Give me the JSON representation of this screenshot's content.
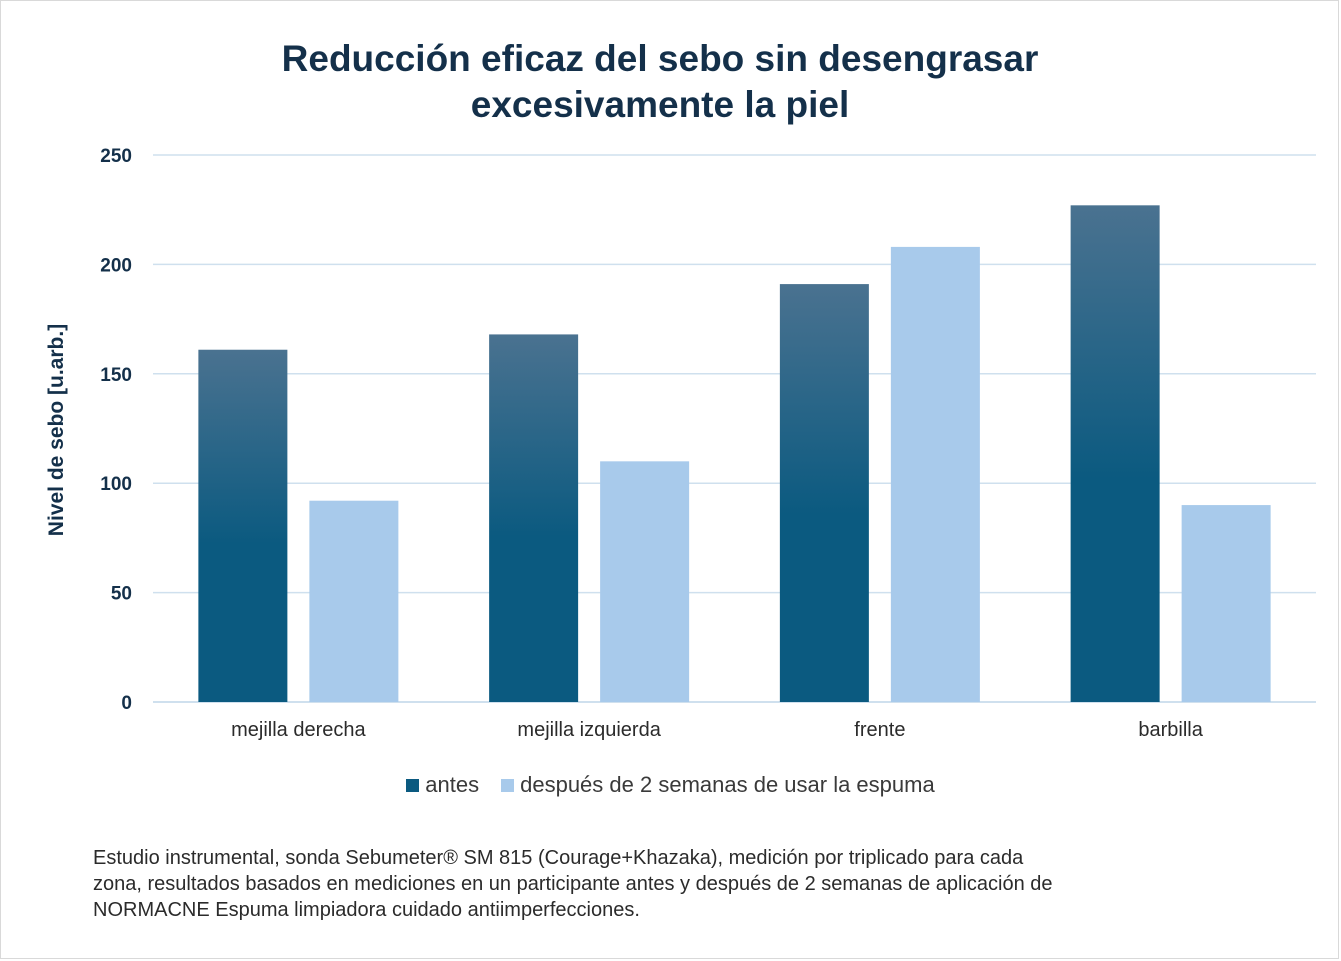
{
  "title_lines": [
    "Reducción eficaz del sebo sin desengrasar",
    "excesivamente la piel"
  ],
  "colors": {
    "antes_top": "#4a7290",
    "antes_bottom": "#0b5a80",
    "despues": "#a8caeb",
    "grid": "#cfe0ee",
    "text_dark": "#14304a"
  },
  "chart_data": {
    "type": "bar",
    "title": "Reducción eficaz del sebo sin desengrasar excesivamente la piel",
    "xlabel": "",
    "ylabel": "Nivel de sebo [u.arb.]",
    "ylim": [
      0,
      250
    ],
    "yticks": [
      "0",
      "50",
      "100",
      "150",
      "200",
      "250"
    ],
    "categories": [
      "mejilla derecha",
      "mejilla izquierda",
      "frente",
      "barbilla"
    ],
    "series": [
      {
        "name": "antes",
        "values": [
          161,
          168,
          191,
          227
        ]
      },
      {
        "name": "después de 2 semanas de usar la espuma",
        "values": [
          92,
          110,
          208,
          90
        ]
      }
    ],
    "grid": true,
    "legend_position": "bottom"
  },
  "footnote_lines": [
    "Estudio instrumental, sonda Sebumeter® SM 815 (Courage+Khazaka), medición por triplicado para cada",
    "zona, resultados basados en mediciones en un participante antes y después de 2 semanas de aplicación de",
    "NORMACNE Espuma limpiadora cuidado antiimperfecciones."
  ]
}
